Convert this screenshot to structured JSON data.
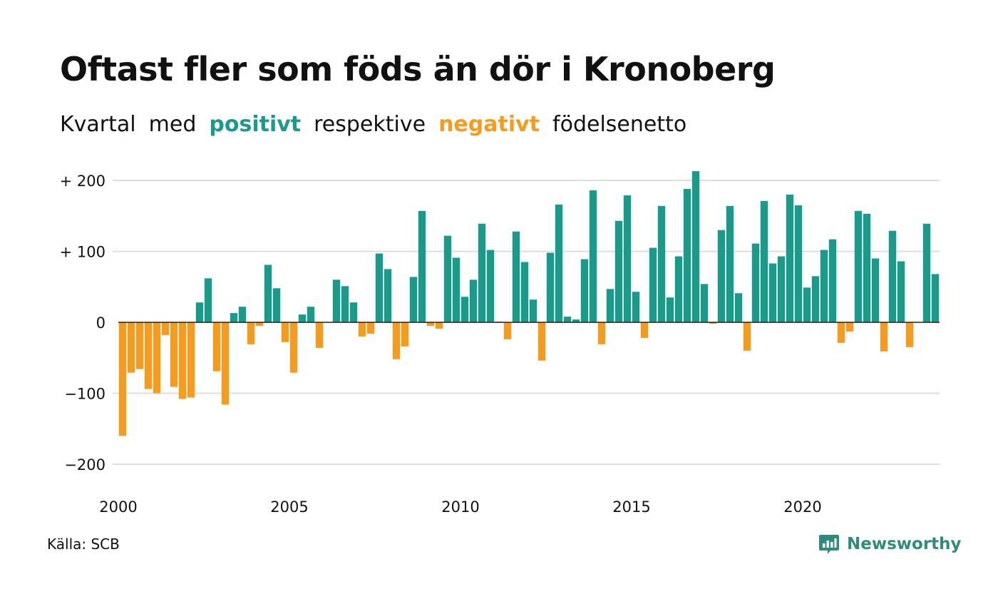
{
  "title": "Oftast fler som föds än dör i Kronoberg",
  "subtitle": {
    "part1": "Kvartal",
    "part2": "med",
    "positive_word": "positivt",
    "part3": "respektive",
    "negative_word": "negativt",
    "part4": "födelsenetto"
  },
  "source": "Källa: SCB",
  "logo": {
    "text": "Newsworthy",
    "icon": "newsworthy-chart-bubble-icon"
  },
  "colors": {
    "positive": "#1b998b",
    "negative": "#f59b1f",
    "grid": "#dddddd",
    "text": "#111111",
    "logo": "#2e8b7e"
  },
  "chart_data": {
    "type": "bar",
    "x_start": 2000,
    "x_step": 0.25,
    "x_ticks": [
      2000,
      2005,
      2010,
      2015,
      2020
    ],
    "y_ticks": [
      {
        "value": 200,
        "label": "+ 200"
      },
      {
        "value": 100,
        "label": "+ 100"
      },
      {
        "value": 0,
        "label": "0"
      },
      {
        "value": -100,
        "label": "−100"
      },
      {
        "value": -200,
        "label": "−200"
      }
    ],
    "ylim": [
      -235,
      215
    ],
    "grid": true,
    "values": [
      -160,
      -71,
      -66,
      -94,
      -100,
      -18,
      -91,
      -108,
      -106,
      28,
      62,
      -69,
      -116,
      13,
      22,
      -31,
      -5,
      81,
      48,
      -28,
      -71,
      11,
      22,
      -36,
      0,
      60,
      51,
      28,
      -20,
      -16,
      97,
      75,
      -52,
      -34,
      64,
      157,
      -5,
      -9,
      122,
      91,
      36,
      60,
      139,
      102,
      1,
      -24,
      128,
      85,
      32,
      -54,
      98,
      166,
      8,
      4,
      89,
      186,
      -31,
      47,
      143,
      179,
      43,
      -22,
      105,
      164,
      35,
      93,
      188,
      213,
      54,
      -2,
      130,
      164,
      41,
      -40,
      111,
      171,
      83,
      93,
      180,
      165,
      49,
      65,
      102,
      117,
      -29,
      -13,
      157,
      153,
      90,
      -41,
      129,
      86,
      -35,
      0,
      139,
      68
    ]
  }
}
